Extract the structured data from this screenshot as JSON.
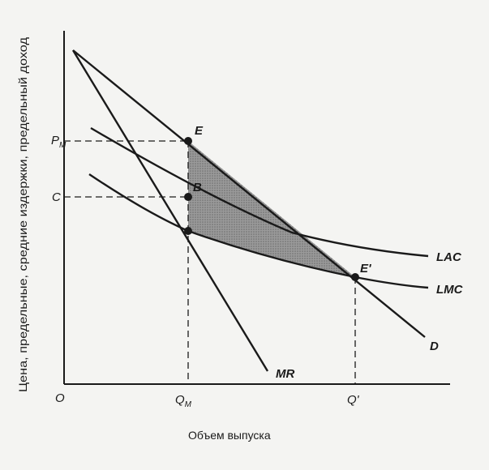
{
  "diagram": {
    "x_axis_title": "Объем выпуска",
    "y_axis_title": "Цена, предельные, средние издержки, предельный доход",
    "origin_label": "O",
    "ticks": {
      "x": {
        "qm_main": "Q",
        "qm_sub": "M",
        "qprime": "Q'"
      },
      "y": {
        "pm_main": "P",
        "pm_sub": "M",
        "c": "C"
      }
    },
    "curves": {
      "lac": "LAC",
      "lmc": "LMC",
      "demand": "D",
      "mr": "MR"
    },
    "points": {
      "e": "E",
      "b": "B",
      "eprime": "E'"
    },
    "colors": {
      "ink": "#1a1a1a",
      "shade": "#8a8a8a",
      "background": "#f4f4f2"
    }
  }
}
